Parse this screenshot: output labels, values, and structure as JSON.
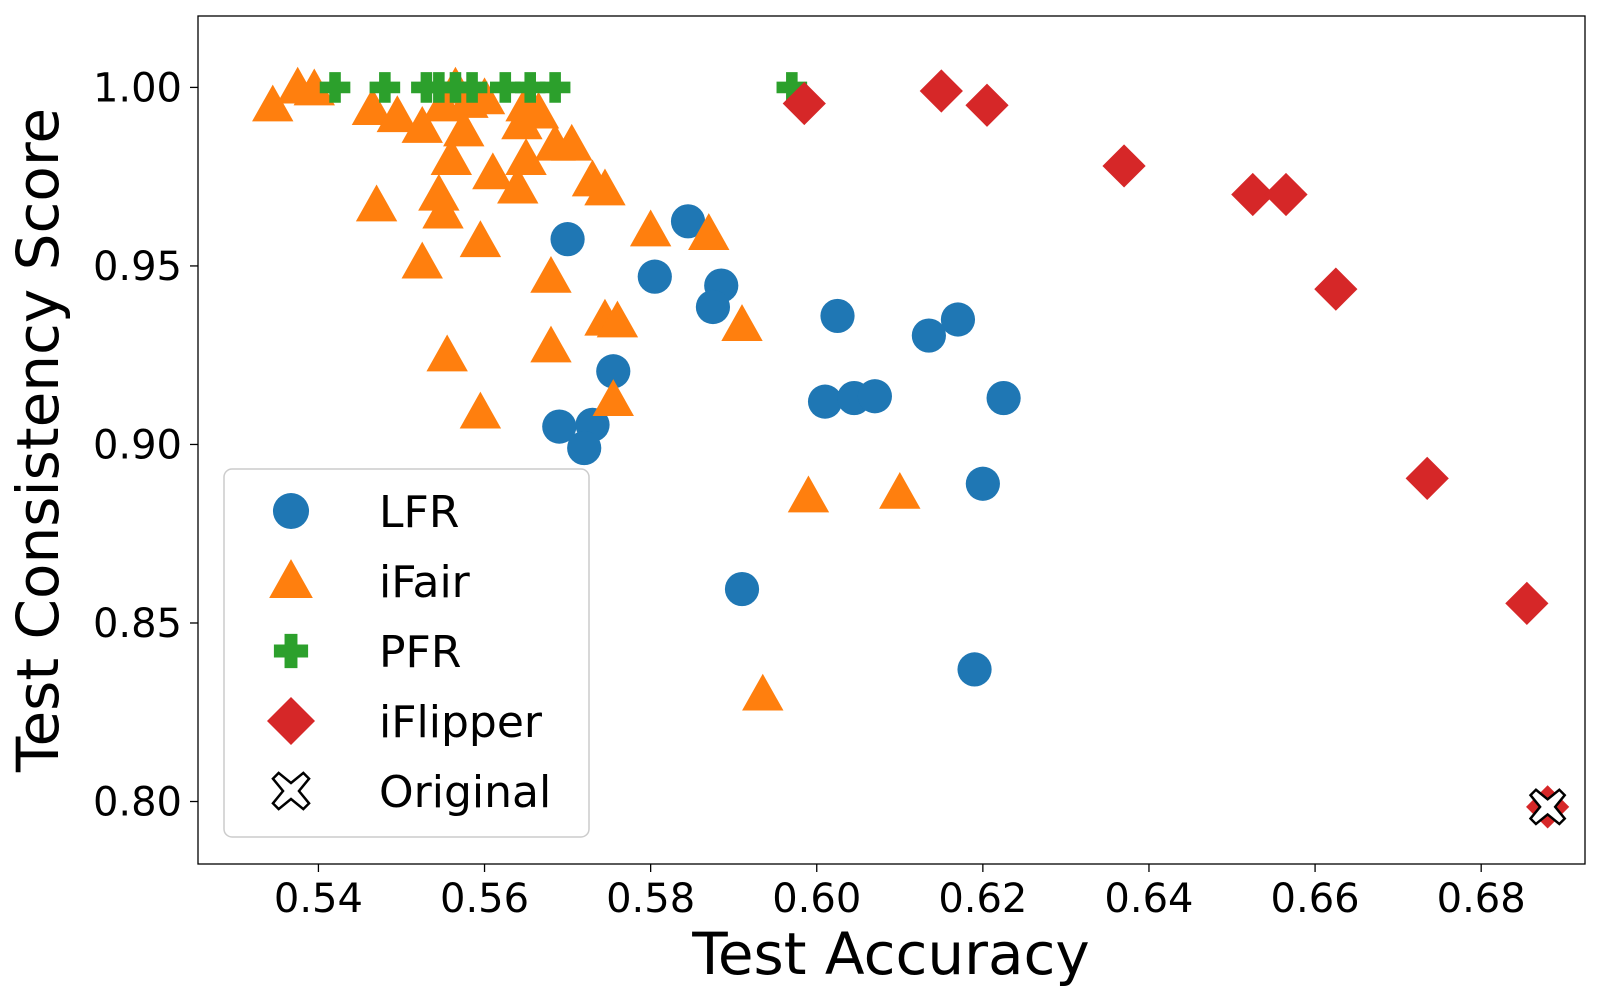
{
  "chart_data": {
    "type": "scatter",
    "title": "",
    "xlabel": "Test Accuracy",
    "ylabel": "Test Consistency Score",
    "xlim": [
      0.5255,
      0.6925
    ],
    "ylim": [
      0.7825,
      1.02
    ],
    "xticks": [
      "0.54",
      "0.56",
      "0.58",
      "0.60",
      "0.62",
      "0.64",
      "0.66",
      "0.68"
    ],
    "xtick_values": [
      0.54,
      0.56,
      0.58,
      0.6,
      0.62,
      0.64,
      0.66,
      0.68
    ],
    "yticks": [
      "1.00",
      "0.95",
      "0.90",
      "0.85",
      "0.80"
    ],
    "ytick_values": [
      1.0,
      0.95,
      0.9,
      0.85,
      0.8
    ],
    "grid": false,
    "legend_position": "bottom-left",
    "series": [
      {
        "name": "LFR",
        "marker": "circle",
        "color": "#1f77b4",
        "points": [
          [
            0.57,
            0.9575
          ],
          [
            0.5845,
            0.9625
          ],
          [
            0.5805,
            0.947
          ],
          [
            0.5885,
            0.9445
          ],
          [
            0.5875,
            0.9385
          ],
          [
            0.5755,
            0.9205
          ],
          [
            0.569,
            0.905
          ],
          [
            0.573,
            0.9055
          ],
          [
            0.572,
            0.899
          ],
          [
            0.6025,
            0.936
          ],
          [
            0.617,
            0.935
          ],
          [
            0.6135,
            0.9305
          ],
          [
            0.601,
            0.912
          ],
          [
            0.6045,
            0.913
          ],
          [
            0.607,
            0.9135
          ],
          [
            0.6225,
            0.913
          ],
          [
            0.62,
            0.889
          ],
          [
            0.591,
            0.8595
          ],
          [
            0.619,
            0.837
          ]
        ]
      },
      {
        "name": "iFair",
        "marker": "triangle",
        "color": "#ff7f0e",
        "points": [
          [
            0.5345,
            0.995
          ],
          [
            0.5375,
            1.0
          ],
          [
            0.5395,
            0.9995
          ],
          [
            0.5465,
            0.994
          ],
          [
            0.5495,
            0.992
          ],
          [
            0.5525,
            0.989
          ],
          [
            0.555,
            0.995
          ],
          [
            0.5565,
            1.0
          ],
          [
            0.558,
            0.996
          ],
          [
            0.56,
            0.997
          ],
          [
            0.5575,
            0.988
          ],
          [
            0.556,
            0.98
          ],
          [
            0.561,
            0.976
          ],
          [
            0.564,
            0.972
          ],
          [
            0.5645,
            0.99
          ],
          [
            0.565,
            0.995
          ],
          [
            0.5665,
            0.993
          ],
          [
            0.565,
            0.98
          ],
          [
            0.5685,
            0.984
          ],
          [
            0.5705,
            0.984
          ],
          [
            0.573,
            0.974
          ],
          [
            0.5745,
            0.9715
          ],
          [
            0.5545,
            0.97
          ],
          [
            0.555,
            0.965
          ],
          [
            0.547,
            0.967
          ],
          [
            0.5525,
            0.951
          ],
          [
            0.5595,
            0.957
          ],
          [
            0.568,
            0.947
          ],
          [
            0.58,
            0.96
          ],
          [
            0.587,
            0.959
          ],
          [
            0.5745,
            0.935
          ],
          [
            0.576,
            0.9345
          ],
          [
            0.591,
            0.9335
          ],
          [
            0.568,
            0.9275
          ],
          [
            0.5555,
            0.925
          ],
          [
            0.5755,
            0.9125
          ],
          [
            0.5595,
            0.909
          ],
          [
            0.599,
            0.8855
          ],
          [
            0.61,
            0.8865
          ],
          [
            0.5935,
            0.83
          ]
        ]
      },
      {
        "name": "PFR",
        "marker": "plus",
        "color": "#2ca02c",
        "points": [
          [
            0.542,
            1.0
          ],
          [
            0.548,
            1.0
          ],
          [
            0.553,
            1.0
          ],
          [
            0.5545,
            1.0
          ],
          [
            0.5565,
            1.0
          ],
          [
            0.5585,
            1.0
          ],
          [
            0.5625,
            1.0
          ],
          [
            0.5655,
            1.0
          ],
          [
            0.5685,
            1.0
          ],
          [
            0.597,
            1.0
          ]
        ]
      },
      {
        "name": "iFlipper",
        "marker": "diamond",
        "color": "#d62728",
        "points": [
          [
            0.5985,
            0.9955
          ],
          [
            0.615,
            0.999
          ],
          [
            0.6205,
            0.995
          ],
          [
            0.637,
            0.978
          ],
          [
            0.6525,
            0.97
          ],
          [
            0.6565,
            0.97
          ],
          [
            0.6625,
            0.9435
          ],
          [
            0.6735,
            0.8905
          ],
          [
            0.6855,
            0.8555
          ],
          [
            0.688,
            0.7985
          ]
        ]
      },
      {
        "name": "Original",
        "marker": "x-open",
        "color": "#000000",
        "points": [
          [
            0.688,
            0.7985
          ]
        ]
      }
    ]
  }
}
